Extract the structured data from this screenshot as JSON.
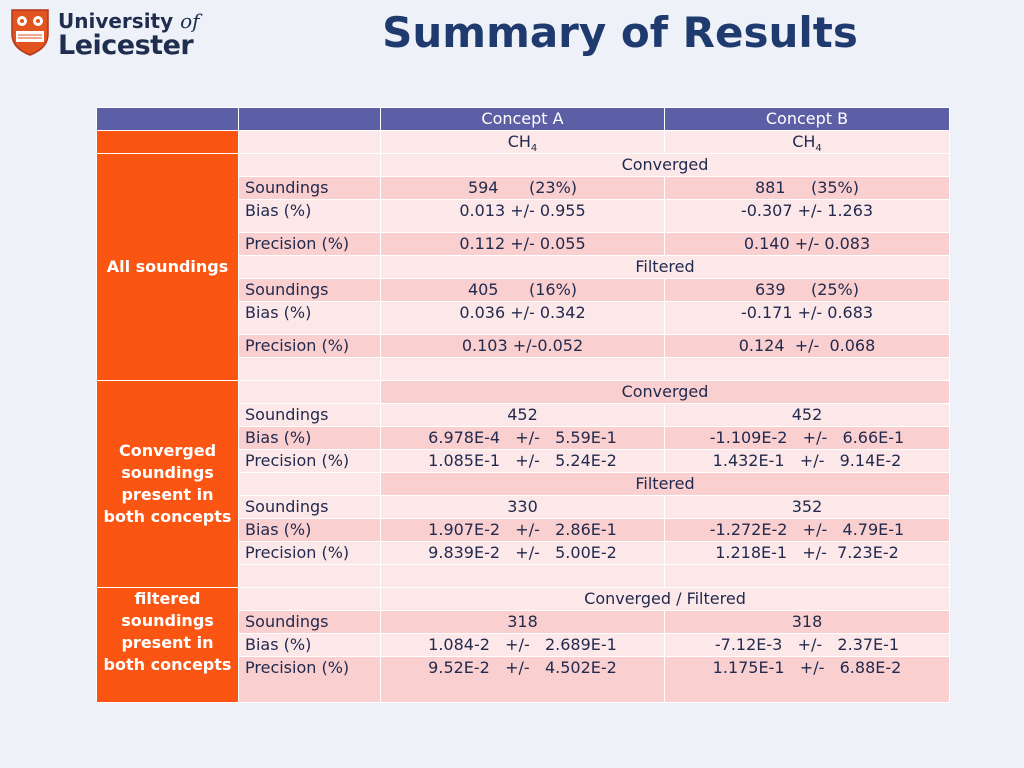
{
  "header": {
    "logo_university": "University",
    "logo_of": "of",
    "logo_leicester": "Leicester",
    "title": "Summary of Results"
  },
  "table": {
    "head": {
      "col_a": "Concept A",
      "col_b": "Concept B"
    },
    "species": {
      "a_main": "CH",
      "a_sub": "4",
      "b_main": "CH",
      "b_sub": "4"
    },
    "groups": [
      {
        "label": "All soundings",
        "sections": [
          {
            "title": "Converged",
            "rows": [
              {
                "label": "Soundings",
                "a": "594      (23%)",
                "b": "881     (35%)"
              },
              {
                "label": "Bias (%)",
                "a": "0.013 +/- 0.955",
                "b": "-0.307 +/- 1.263"
              },
              {
                "label": "Precision (%)",
                "a": "0.112 +/- 0.055",
                "b": "0.140 +/- 0.083"
              }
            ]
          },
          {
            "title": "Filtered",
            "rows": [
              {
                "label": "Soundings",
                "a": "405      (16%)",
                "b": "639     (25%)"
              },
              {
                "label": "Bias (%)",
                "a": "0.036 +/- 0.342",
                "b": "-0.171 +/- 0.683"
              },
              {
                "label": "Precision (%)",
                "a": "0.103 +/-0.052",
                "b": "0.124  +/-  0.068"
              }
            ]
          }
        ]
      },
      {
        "label": "Converged soundings present in both concepts",
        "sections": [
          {
            "title": "Converged",
            "rows": [
              {
                "label": "Soundings",
                "a": "452",
                "b": "452"
              },
              {
                "label": "Bias (%)",
                "a": "6.978E-4   +/-   5.59E-1",
                "b": "-1.109E-2   +/-   6.66E-1"
              },
              {
                "label": "Precision (%)",
                "a": "1.085E-1   +/-   5.24E-2",
                "b": "1.432E-1   +/-   9.14E-2"
              }
            ]
          },
          {
            "title": "Filtered",
            "rows": [
              {
                "label": "Soundings",
                "a": "330",
                "b": "352"
              },
              {
                "label": "Bias (%)",
                "a": "1.907E-2   +/-   2.86E-1",
                "b": "-1.272E-2   +/-   4.79E-1"
              },
              {
                "label": "Precision (%)",
                "a": "9.839E-2   +/-   5.00E-2",
                "b": "1.218E-1   +/-  7.23E-2"
              }
            ]
          }
        ]
      },
      {
        "label": "filtered soundings present in both concepts",
        "sections": [
          {
            "title": "Converged / Filtered",
            "rows": [
              {
                "label": "Soundings",
                "a": "318",
                "b": "318"
              },
              {
                "label": "Bias (%)",
                "a": "1.084-2   +/-   2.689E-1",
                "b": "-7.12E-3   +/-   2.37E-1"
              },
              {
                "label": "Precision (%)",
                "a": "9.52E-2   +/-   4.502E-2",
                "b": "1.175E-1   +/-   6.88E-2"
              }
            ]
          }
        ]
      }
    ]
  },
  "colors": {
    "background": "#eef1f8",
    "header_row": "#5c5ea6",
    "group_orange": "#fa5512",
    "row_dark": "#f9cfd0",
    "row_light": "#fde8e9",
    "title_blue": "#1f3a6e"
  }
}
